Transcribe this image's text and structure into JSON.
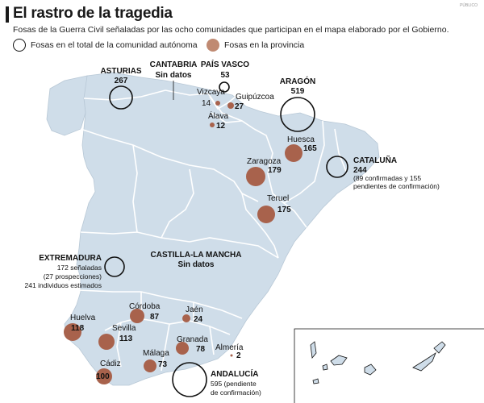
{
  "header": {
    "title": "El rastro de la tragedia",
    "subtitle": "Fosas de la Guerra Civil señaladas por las ocho comunidades que participan en el mapa elaborado por el Gobierno.",
    "corner": "PÚBLICO"
  },
  "legend": {
    "open_label": "Fosas en el total de la comunidad autónoma",
    "filled_label": "Fosas en la provincia"
  },
  "colors": {
    "land": "#cfdde9",
    "border": "#ffffff",
    "province_fill": "#a8624c",
    "outline": "#111111"
  },
  "communities": {
    "asturias": {
      "name": "ASTURIAS",
      "count": "267"
    },
    "cantabria": {
      "name": "CANTABRIA",
      "note": "Sin datos"
    },
    "pais_vasco": {
      "name": "PAÍS VASCO",
      "count": "53"
    },
    "aragon": {
      "name": "ARAGÓN",
      "count": "519"
    },
    "cataluna": {
      "name": "CATALUÑA",
      "count": "244",
      "note1": "(89 confirmadas y 155",
      "note2": "pendientes de confirmación)"
    },
    "extremadura": {
      "name": "EXTREMADURA",
      "line1": "172 señaladas",
      "line2": "(27 prospecciones)",
      "line3": "241 individuos estimados"
    },
    "castilla_la_mancha": {
      "name": "CASTILLA-LA MANCHA",
      "note": "Sin datos"
    },
    "andalucia": {
      "name": "ANDALUCÍA",
      "line1": "595 (pendiente",
      "line2": "de confirmación)"
    }
  },
  "provinces": {
    "vizcaya": {
      "name": "Vizcaya",
      "count": "14"
    },
    "guipuzcoa": {
      "name": "Guipúzcoa",
      "count": "27"
    },
    "alava": {
      "name": "Álava",
      "count": "12"
    },
    "huesca": {
      "name": "Huesca",
      "count": "165"
    },
    "zaragoza": {
      "name": "Zaragoza",
      "count": "179"
    },
    "teruel": {
      "name": "Teruel",
      "count": "175"
    },
    "huelva": {
      "name": "Huelva",
      "count": "118"
    },
    "sevilla": {
      "name": "Sevilla",
      "count": "113"
    },
    "cordoba": {
      "name": "Córdoba",
      "count": "87"
    },
    "jaen": {
      "name": "Jaén",
      "count": "24"
    },
    "granada": {
      "name": "Granada",
      "count": "78"
    },
    "almeria": {
      "name": "Almería",
      "count": "2"
    },
    "malaga": {
      "name": "Málaga",
      "count": "73"
    },
    "cadiz": {
      "name": "Cádiz",
      "count": "100"
    }
  }
}
